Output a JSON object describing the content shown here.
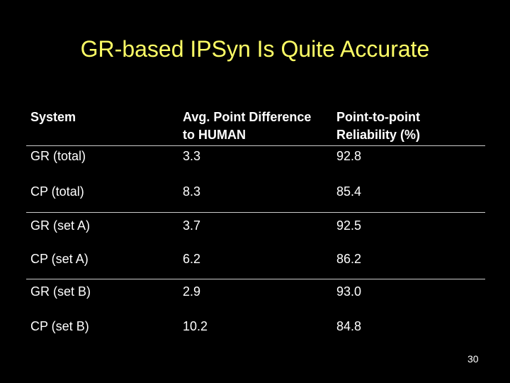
{
  "slide": {
    "title": "GR-based IPSyn Is Quite Accurate",
    "page_number": "30"
  },
  "table": {
    "headers": {
      "system": "System",
      "avg_diff_line1": "Avg. Point Difference",
      "avg_diff_line2": "to HUMAN",
      "reliability_line1": "Point-to-point",
      "reliability_line2": "Reliability (%)"
    },
    "rows": [
      {
        "system": "GR (total)",
        "avg_diff": "3.3",
        "reliability": "92.8"
      },
      {
        "system": "CP (total)",
        "avg_diff": "8.3",
        "reliability": "85.4"
      },
      {
        "system": "GR (set A)",
        "avg_diff": "3.7",
        "reliability": "92.5"
      },
      {
        "system": "CP (set A)",
        "avg_diff": "6.2",
        "reliability": "86.2"
      },
      {
        "system": "GR (set B)",
        "avg_diff": "2.9",
        "reliability": "93.0"
      },
      {
        "system": "CP (set B)",
        "avg_diff": "10.2",
        "reliability": "84.8"
      }
    ]
  },
  "colors": {
    "background": "#000000",
    "title": "#ffff66",
    "text": "#ffffff",
    "rule": "#cccccc"
  }
}
